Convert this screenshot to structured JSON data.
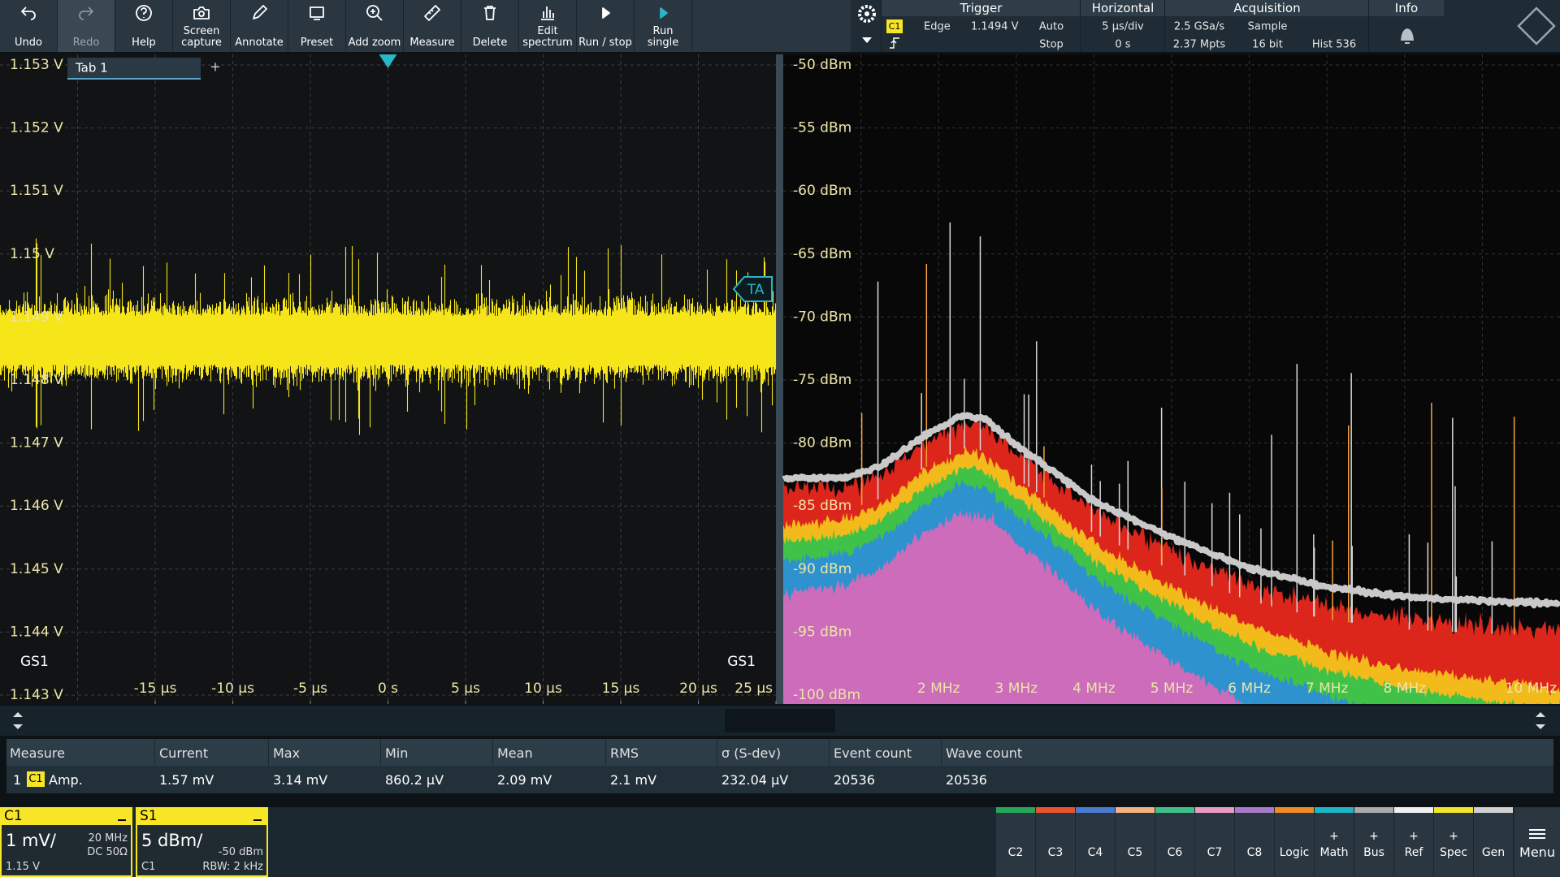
{
  "toolbar": [
    {
      "label": "Undo"
    },
    {
      "label": "Redo",
      "disabled": true
    },
    {
      "label": "Help"
    },
    {
      "label": "Screen capture"
    },
    {
      "label": "Annotate"
    },
    {
      "label": "Preset"
    },
    {
      "label": "Add zoom"
    },
    {
      "label": "Measure"
    },
    {
      "label": "Delete"
    },
    {
      "label": "Edit spectrum"
    },
    {
      "label": "Run / stop"
    },
    {
      "label": "Run single"
    }
  ],
  "status": {
    "trigger": {
      "title": "Trigger",
      "source": "C1",
      "type": "Edge",
      "level": "1.1494 V",
      "mode": "Auto",
      "state": "Stop"
    },
    "horizontal": {
      "title": "Horizontal",
      "scale": "5 µs/div",
      "position": "0 s"
    },
    "acquisition": {
      "title": "Acquisition",
      "rate": "2.5 GSa/s",
      "mode": "Sample",
      "points": "2.37 Mpts",
      "bits": "16 bit",
      "hist": "Hist 536"
    },
    "info": {
      "title": "Info"
    }
  },
  "tab": {
    "label": "Tab 1",
    "add": "+"
  },
  "time_plot": {
    "xlim": [
      -25,
      25
    ],
    "ylim": [
      1.143,
      1.153
    ],
    "yticks": [
      {
        "value": 1.153,
        "label": "1.153 V"
      },
      {
        "value": 1.152,
        "label": "1.152 V"
      },
      {
        "value": 1.151,
        "label": "1.151 V"
      },
      {
        "value": 1.15,
        "label": "1.15 V"
      },
      {
        "value": 1.149,
        "label": "1.149 V"
      },
      {
        "value": 1.148,
        "label": "1.148 V"
      },
      {
        "value": 1.147,
        "label": "1.147 V"
      },
      {
        "value": 1.146,
        "label": "1.146 V"
      },
      {
        "value": 1.145,
        "label": "1.145 V"
      },
      {
        "value": 1.144,
        "label": "1.144 V"
      },
      {
        "value": 1.143,
        "label": "1.143 V"
      }
    ],
    "xticks": [
      {
        "value": -15,
        "label": "-15 µs"
      },
      {
        "value": -10,
        "label": "-10 µs"
      },
      {
        "value": -5,
        "label": "-5 µs"
      },
      {
        "value": 0,
        "label": "0 s"
      },
      {
        "value": 5,
        "label": "5 µs"
      },
      {
        "value": 10,
        "label": "10 µs"
      },
      {
        "value": 15,
        "label": "15 µs"
      },
      {
        "value": 20,
        "label": "20 µs"
      },
      {
        "value": 25,
        "label": "25 µs"
      }
    ],
    "gate_labels": [
      "GS1",
      "GS1"
    ],
    "marker": "TA"
  },
  "spectrum_plot": {
    "xlim": [
      0,
      10
    ],
    "ylim": [
      -100,
      -50
    ],
    "yticks": [
      {
        "value": -50,
        "label": "-50 dBm"
      },
      {
        "value": -55,
        "label": "-55 dBm"
      },
      {
        "value": -60,
        "label": "-60 dBm"
      },
      {
        "value": -65,
        "label": "-65 dBm"
      },
      {
        "value": -70,
        "label": "-70 dBm"
      },
      {
        "value": -75,
        "label": "-75 dBm"
      },
      {
        "value": -80,
        "label": "-80 dBm"
      },
      {
        "value": -85,
        "label": "-85 dBm"
      },
      {
        "value": -90,
        "label": "-90 dBm"
      },
      {
        "value": -95,
        "label": "-95 dBm"
      },
      {
        "value": -100,
        "label": "-100 dBm"
      }
    ],
    "xticks": [
      {
        "value": 2,
        "label": "2 MHz"
      },
      {
        "value": 3,
        "label": "3 MHz"
      },
      {
        "value": 4,
        "label": "4 MHz"
      },
      {
        "value": 5,
        "label": "5 MHz"
      },
      {
        "value": 6,
        "label": "6 MHz"
      },
      {
        "value": 7,
        "label": "7 MHz"
      },
      {
        "value": 8,
        "label": "8 MHz"
      },
      {
        "value": 10,
        "label": "10 MHz"
      }
    ]
  },
  "measure_table": {
    "headers": [
      "Measure",
      "Current",
      "Max",
      "Min",
      "Mean",
      "RMS",
      "σ (S-dev)",
      "Event count",
      "Wave count"
    ],
    "rows": [
      {
        "index": "1",
        "source": "C1",
        "name": "Amp.",
        "cells": [
          "1.57 mV",
          "3.14 mV",
          "860.2 µV",
          "2.09 mV",
          "2.1 mV",
          "232.04 µV",
          "20536",
          "20536"
        ]
      }
    ]
  },
  "channels": {
    "c1": {
      "name": "C1",
      "scale": "1 mV/",
      "bandwidth": "20 MHz",
      "coupling": "DC 50Ω",
      "offset": "1.15 V"
    },
    "s1": {
      "name": "S1",
      "scale": "5 dBm/",
      "ref": "-50 dBm",
      "source": "C1",
      "rbw": "RBW: 2 kHz"
    }
  },
  "channel_buttons": [
    {
      "label": "C2",
      "color": "#26a65b"
    },
    {
      "label": "C3",
      "color": "#e8542f"
    },
    {
      "label": "C4",
      "color": "#4b7bd0"
    },
    {
      "label": "C5",
      "color": "#f4b183"
    },
    {
      "label": "C6",
      "color": "#3fbf8a"
    },
    {
      "label": "C7",
      "color": "#e89ac7"
    },
    {
      "label": "C8",
      "color": "#a77bc9"
    },
    {
      "label": "Logic",
      "color": "#f08a24"
    },
    {
      "label": "Math",
      "prefix": "+",
      "color": "#1fb5c9"
    },
    {
      "label": "Bus",
      "prefix": "+",
      "color": "#aaaaaa"
    },
    {
      "label": "Ref",
      "prefix": "+",
      "color": "#f0f0f0"
    },
    {
      "label": "Spec",
      "prefix": "+",
      "color": "#f2e52b"
    },
    {
      "label": "Gen",
      "color": "#d0d0d0"
    }
  ],
  "menu": "Menu"
}
